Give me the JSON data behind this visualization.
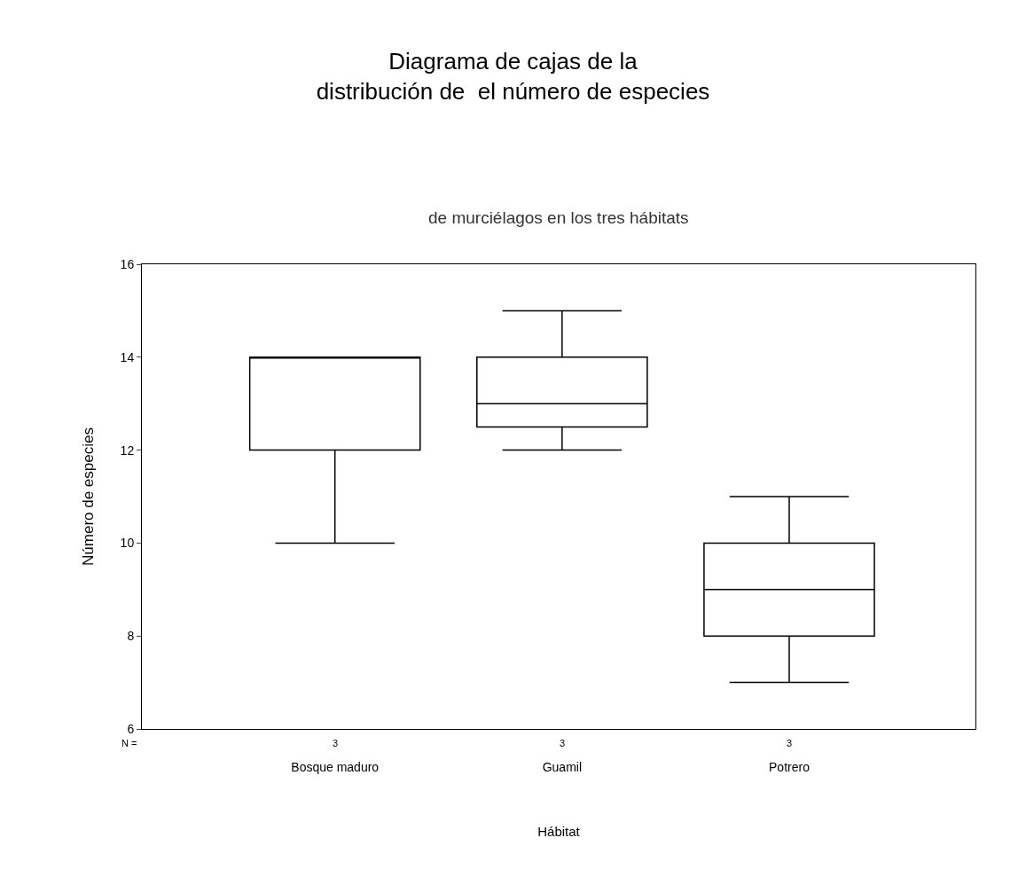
{
  "chart_data": {
    "type": "box",
    "title": "Diagrama de cajas de la\ndistribución de  el número de especies",
    "subtitle": "de murciélagos en los tres hábitats",
    "xlabel": "Hábitat",
    "ylabel": "Número de especies",
    "categories": [
      "Bosque maduro",
      "Guamil",
      "Potrero"
    ],
    "boxes": [
      {
        "low": 10,
        "q1": 12,
        "median": 14,
        "q3": 14,
        "high": 14
      },
      {
        "low": 12,
        "q1": 12.5,
        "median": 13,
        "q3": 14,
        "high": 15
      },
      {
        "low": 7,
        "q1": 8,
        "median": 9,
        "q3": 10,
        "high": 11
      }
    ],
    "color": "#000000",
    "ylim": [
      6,
      16
    ],
    "yticks": [
      6,
      8,
      10,
      12,
      14,
      16
    ],
    "annotations": [
      "N =",
      "3",
      "3",
      "3"
    ]
  }
}
